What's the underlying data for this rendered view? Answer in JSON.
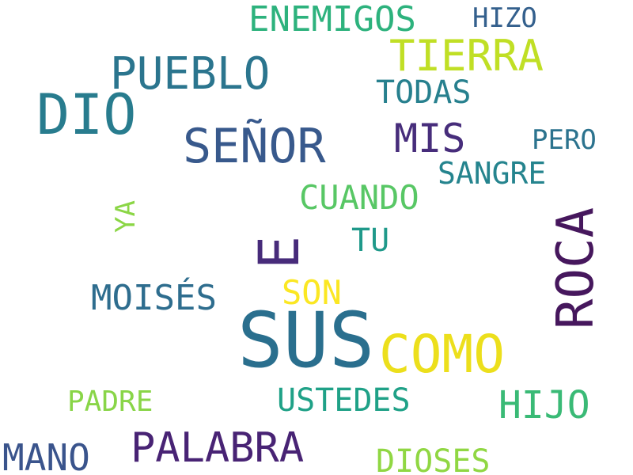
{
  "words": [
    {
      "text": "SUS",
      "color": "#2a6f8e"
    },
    {
      "text": "E",
      "color": "#472b7a"
    },
    {
      "text": "DIO",
      "color": "#287c8e"
    },
    {
      "text": "SEÑOR",
      "color": "#38598c"
    },
    {
      "text": "COMO",
      "color": "#ecdf1c"
    },
    {
      "text": "ROCA",
      "color": "#46175d"
    },
    {
      "text": "PUEBLO",
      "color": "#2b758e"
    },
    {
      "text": "TIERRA",
      "color": "#c0df25"
    },
    {
      "text": "PALABRA",
      "color": "#482374"
    },
    {
      "text": "ENEMIGOS",
      "color": "#2db27d"
    },
    {
      "text": "MIS",
      "color": "#472d7b"
    },
    {
      "text": "HIJO",
      "color": "#3aba76"
    },
    {
      "text": "CUANDO",
      "color": "#58c765"
    },
    {
      "text": "MOISÉS",
      "color": "#2e6d8e"
    },
    {
      "text": "MANO",
      "color": "#3a548c"
    },
    {
      "text": "SANGRE",
      "color": "#25848e"
    },
    {
      "text": "USTEDES",
      "color": "#1fa187"
    },
    {
      "text": "DIOSES",
      "color": "#90d743"
    },
    {
      "text": "SON",
      "color": "#fbe723"
    },
    {
      "text": "TODAS",
      "color": "#27808e"
    },
    {
      "text": "TU",
      "color": "#1f998a"
    },
    {
      "text": "HIZO",
      "color": "#34608d"
    },
    {
      "text": "PERO",
      "color": "#2c738e"
    },
    {
      "text": "PADRE",
      "color": "#89d548"
    },
    {
      "text": "YA",
      "color": "#8bd646"
    }
  ]
}
